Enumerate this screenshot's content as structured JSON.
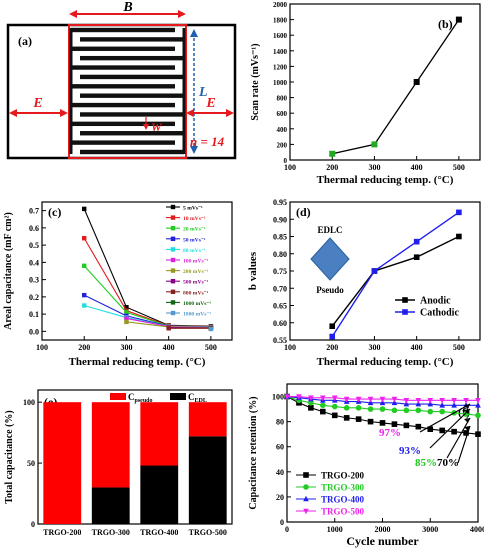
{
  "chart_data": [
    {
      "panel": "(a)",
      "type": "schematic",
      "labels": {
        "width": "B",
        "length": "L",
        "edge_left": "E",
        "edge_right": "E",
        "gap": "W",
        "count": "n = 14"
      },
      "finger_count": 14,
      "colors": {
        "border": "#000000",
        "active_area": "#e41a1c",
        "dimension": "#e41a1c",
        "length_arrow": "#2060b0"
      }
    },
    {
      "panel": "(b)",
      "type": "line",
      "xlabel": "Thermal reducing temp. (°C)",
      "ylabel": "Scan rate (mVs⁻¹)",
      "xlim": [
        100,
        550
      ],
      "ylim": [
        0,
        2000
      ],
      "xticks": [
        "100",
        "200",
        "300",
        "400",
        "500"
      ],
      "yticks": [
        "0",
        "200",
        "400",
        "600",
        "800",
        "1000",
        "1200",
        "1400",
        "1600",
        "1800",
        "2000"
      ],
      "x": [
        200,
        300,
        400,
        500
      ],
      "values": [
        80,
        200,
        1000,
        1800
      ],
      "marker_colors": [
        "#22aa22",
        "#22aa22",
        "#000000",
        "#000000"
      ]
    },
    {
      "panel": "(c)",
      "type": "line",
      "xlabel": "Thermal reducing temp. (°C)",
      "ylabel": "Areal capacitance (mF cm²)",
      "xlim": [
        100,
        550
      ],
      "ylim": [
        -0.05,
        0.75
      ],
      "xticks": [
        "100",
        "200",
        "300",
        "400",
        "500"
      ],
      "yticks": [
        "0.0",
        "0.1",
        "0.2",
        "0.3",
        "0.4",
        "0.5",
        "0.6",
        "0.7"
      ],
      "x": [
        200,
        300,
        400,
        500
      ],
      "series": [
        {
          "name": "5 mVs⁻¹",
          "values": [
            0.71,
            0.14,
            0.035,
            0.03
          ],
          "color": "#000000"
        },
        {
          "name": "10 mVs⁻¹",
          "values": [
            0.54,
            0.12,
            0.033,
            0.028
          ],
          "color": "#e41a1c"
        },
        {
          "name": "20 mVs⁻¹",
          "values": [
            0.38,
            0.11,
            0.031,
            0.027
          ],
          "color": "#22cc22"
        },
        {
          "name": "50 mVs⁻¹",
          "values": [
            0.21,
            0.09,
            0.03,
            0.026
          ],
          "color": "#2020dd"
        },
        {
          "name": "80 mVs⁻¹",
          "values": [
            0.15,
            0.08,
            0.029,
            0.025
          ],
          "color": "#22dddd"
        },
        {
          "name": "100 mVs⁻¹",
          "values": [
            null,
            0.075,
            0.028,
            0.024
          ],
          "color": "#dd22dd"
        },
        {
          "name": "200 mVs⁻¹",
          "values": [
            null,
            0.055,
            0.026,
            0.023
          ],
          "color": "#999922"
        },
        {
          "name": "500 mVs⁻¹",
          "values": [
            null,
            null,
            0.022,
            0.02
          ],
          "color": "#880088"
        },
        {
          "name": "800 mVs⁻¹",
          "values": [
            null,
            null,
            0.018,
            0.018
          ],
          "color": "#882222"
        },
        {
          "name": "1000 mVs⁻¹",
          "values": [
            null,
            null,
            null,
            0.016
          ],
          "color": "#116611"
        },
        {
          "name": "1800 mVs⁻¹",
          "values": [
            null,
            null,
            null,
            0.014
          ],
          "color": "#5599cc"
        }
      ],
      "legend": "right"
    },
    {
      "panel": "(d)",
      "type": "line",
      "xlabel": "Thermal reducing temp. (°C)",
      "ylabel": "b values",
      "xlim": [
        100,
        550
      ],
      "ylim": [
        0.55,
        0.95
      ],
      "xticks": [
        "100",
        "200",
        "300",
        "400",
        "500"
      ],
      "yticks": [
        "0.55",
        "0.60",
        "0.65",
        "0.70",
        "0.75",
        "0.80",
        "0.85",
        "0.90",
        "0.95"
      ],
      "x": [
        200,
        300,
        400,
        500
      ],
      "series": [
        {
          "name": "Anodic",
          "values": [
            0.59,
            0.75,
            0.79,
            0.85
          ],
          "color": "#000000"
        },
        {
          "name": "Cathodic",
          "values": [
            0.56,
            0.75,
            0.835,
            0.92
          ],
          "color": "#2020ee"
        }
      ],
      "annotations": [
        "EDLC",
        "Pseudo"
      ],
      "diamond_color": "#4a7fc1",
      "legend": "bottom-right"
    },
    {
      "panel": "(e)",
      "type": "bar",
      "stacked": true,
      "ylabel": "Total capacitance (%)",
      "ylim": [
        0,
        110
      ],
      "yticks": [
        "0",
        "50",
        "100"
      ],
      "categories": [
        "TRGO-200",
        "TRGO-300",
        "TRGO-400",
        "TRGO-500"
      ],
      "series": [
        {
          "name": "C",
          "subscript": "EDL",
          "values": [
            0,
            30,
            48,
            72
          ],
          "color": "#000000"
        },
        {
          "name": "C",
          "subscript": "pseudo",
          "values": [
            100,
            70,
            52,
            28
          ],
          "color": "#ff0000"
        }
      ],
      "legend": "top"
    },
    {
      "panel": "(f)",
      "type": "line",
      "xlabel": "Cycle number",
      "ylabel": "Capacitance retention (%)",
      "xlim": [
        0,
        4000
      ],
      "ylim": [
        0,
        110
      ],
      "xticks": [
        "0",
        "1000",
        "2000",
        "3000",
        "4000"
      ],
      "yticks": [
        "0",
        "20",
        "40",
        "60",
        "80",
        "100"
      ],
      "x": [
        0,
        250,
        500,
        750,
        1000,
        1250,
        1500,
        1750,
        2000,
        2250,
        2500,
        2750,
        3000,
        3250,
        3500,
        3750,
        4000
      ],
      "series": [
        {
          "name": "TRGO-200",
          "values": [
            100,
            95,
            91,
            88,
            85,
            83,
            82,
            80,
            79,
            78,
            77,
            76,
            74,
            73,
            72,
            71,
            70
          ],
          "color": "#000000",
          "marker": "square"
        },
        {
          "name": "TRGO-300",
          "values": [
            100,
            97,
            95,
            93,
            92,
            91,
            91,
            90,
            90,
            89,
            89,
            89,
            88,
            88,
            87,
            86,
            85
          ],
          "color": "#22cc22",
          "marker": "circle"
        },
        {
          "name": "TRGO-400",
          "values": [
            100,
            99,
            98,
            97,
            97,
            96,
            96,
            95,
            95,
            95,
            94,
            94,
            94,
            93,
            93,
            93,
            93
          ],
          "color": "#2020ee",
          "marker": "triangle"
        },
        {
          "name": "TRGO-500",
          "values": [
            100,
            100,
            99,
            99,
            99,
            98,
            98,
            98,
            98,
            98,
            97,
            97,
            97,
            97,
            97,
            97,
            97
          ],
          "color": "#ee22ee",
          "marker": "triangle-down"
        }
      ],
      "annotations": [
        {
          "text": "97%",
          "color": "#ee22ee"
        },
        {
          "text": "93%",
          "color": "#2020ee"
        },
        {
          "text": "85%",
          "color": "#22cc22"
        },
        {
          "text": "70%",
          "color": "#000000"
        }
      ],
      "legend": "bottom-left"
    }
  ]
}
